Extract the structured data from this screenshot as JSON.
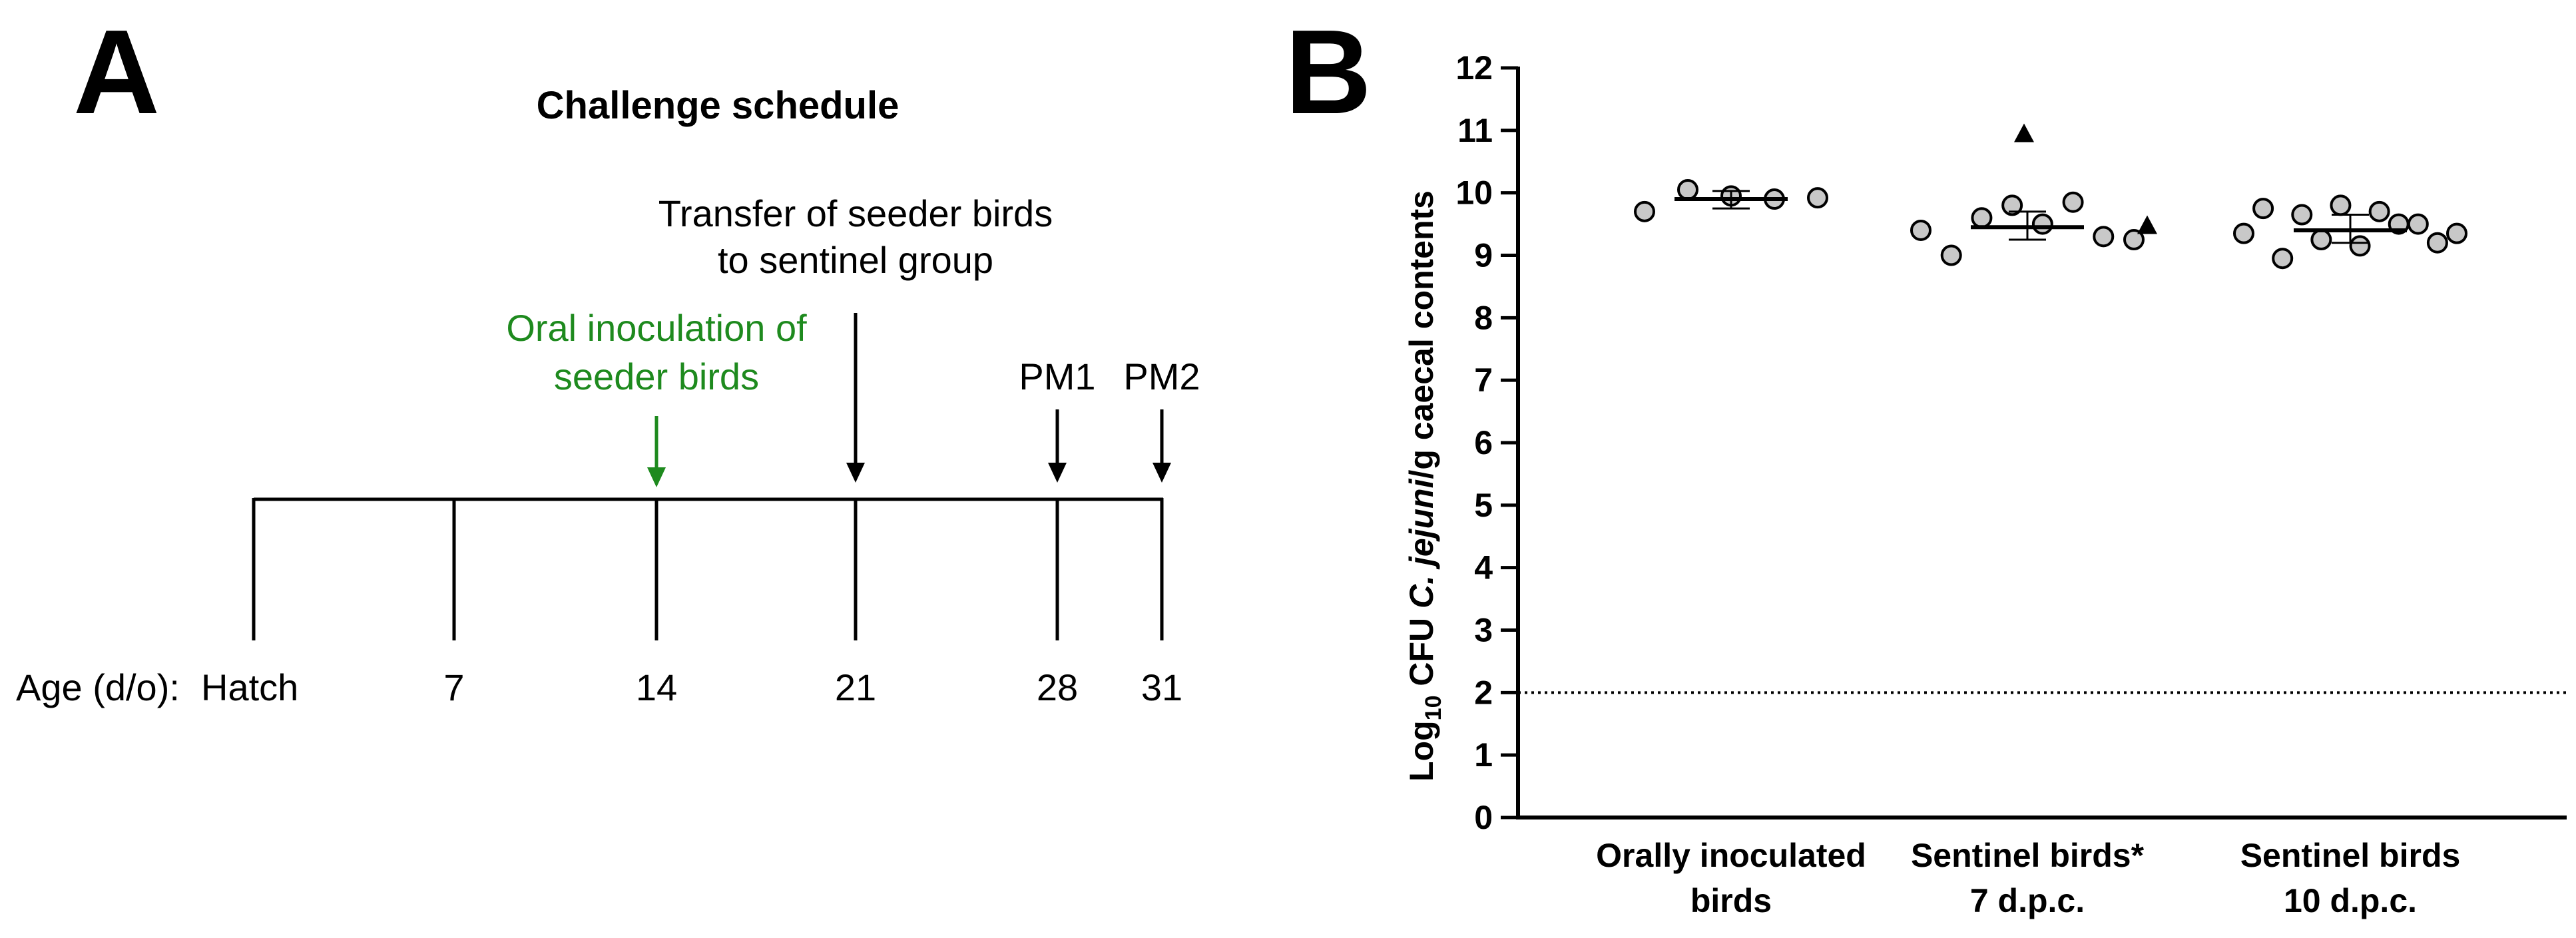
{
  "panel_a": {
    "letter": "A",
    "title": "Challenge schedule",
    "age_label": "Age (d/o):",
    "ages": [
      "Hatch",
      "7",
      "14",
      "21",
      "28",
      "31"
    ],
    "inoculation_label_line1": "Oral inoculation of",
    "inoculation_label_line2": "seeder birds",
    "transfer_label_line1": "Transfer of seeder birds",
    "transfer_label_line2": "to sentinel group",
    "pm1_label": "PM1",
    "pm2_label": "PM2",
    "colors": {
      "inoculation": "#1e8a1e",
      "line": "#000000"
    }
  },
  "panel_b": {
    "letter": "B"
  },
  "chart_data": {
    "type": "scatter",
    "ylabel_parts": [
      "Log",
      "10",
      " CFU ",
      "C. jejuni",
      "/g caecal contents"
    ],
    "ylim": [
      0,
      12
    ],
    "yticks": [
      "0",
      "1",
      "2",
      "3",
      "4",
      "5",
      "6",
      "7",
      "8",
      "9",
      "10",
      "11",
      "12"
    ],
    "detection_limit": 2,
    "groups": [
      {
        "line1": "Orally inoculated",
        "line2": "birds",
        "values": [
          9.7,
          10.05,
          9.95,
          9.9,
          9.92
        ],
        "median": 9.9,
        "iqr": [
          9.75,
          10.03
        ],
        "outliers": []
      },
      {
        "line1": "Sentinel birds*",
        "line2": "7 d.p.c.",
        "values": [
          9.4,
          9.0,
          9.6,
          9.8,
          9.5,
          9.85,
          9.3,
          9.25
        ],
        "median": 9.45,
        "iqr": [
          9.25,
          9.7
        ],
        "outliers": [
          10.95,
          9.48
        ]
      },
      {
        "line1": "Sentinel birds",
        "line2": "10 d.p.c.",
        "values": [
          9.35,
          9.75,
          8.95,
          9.65,
          9.25,
          9.8,
          9.15,
          9.7,
          9.5,
          9.5,
          9.2,
          9.35
        ],
        "median": 9.4,
        "iqr": [
          9.2,
          9.65
        ],
        "outliers": []
      }
    ],
    "colors": {
      "point_fill": "#c8c8c8",
      "point_stroke": "#000000",
      "dotted": "#000000"
    }
  }
}
